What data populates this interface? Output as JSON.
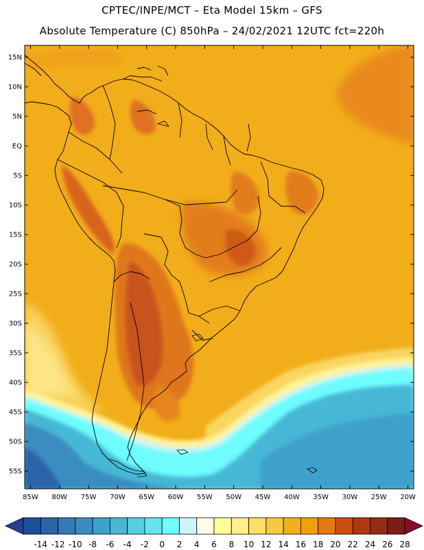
{
  "header": {
    "line1": "CPTEC/INPE/MCT –   Eta Model 15km – GFS",
    "line2": "Absolute Temperature (C) 850hPa – 24/02/2021 12UTC fct=220h"
  },
  "map": {
    "lon_range": [
      -86,
      -19
    ],
    "lat_range": [
      -58,
      17
    ],
    "lat_ticks": [
      {
        "value": 15,
        "label": "15N"
      },
      {
        "value": 10,
        "label": "10N"
      },
      {
        "value": 5,
        "label": "5N"
      },
      {
        "value": 0,
        "label": "EQ"
      },
      {
        "value": -5,
        "label": "5S"
      },
      {
        "value": -10,
        "label": "10S"
      },
      {
        "value": -15,
        "label": "15S"
      },
      {
        "value": -20,
        "label": "20S"
      },
      {
        "value": -25,
        "label": "25S"
      },
      {
        "value": -30,
        "label": "30S"
      },
      {
        "value": -35,
        "label": "35S"
      },
      {
        "value": -40,
        "label": "40S"
      },
      {
        "value": -45,
        "label": "45S"
      },
      {
        "value": -50,
        "label": "50S"
      },
      {
        "value": -55,
        "label": "55S"
      }
    ],
    "lon_ticks": [
      {
        "value": -85,
        "label": "85W"
      },
      {
        "value": -80,
        "label": "80W"
      },
      {
        "value": -75,
        "label": "75W"
      },
      {
        "value": -70,
        "label": "70W"
      },
      {
        "value": -65,
        "label": "65W"
      },
      {
        "value": -60,
        "label": "60W"
      },
      {
        "value": -55,
        "label": "55W"
      },
      {
        "value": -50,
        "label": "50W"
      },
      {
        "value": -45,
        "label": "45W"
      },
      {
        "value": -40,
        "label": "40W"
      },
      {
        "value": -35,
        "label": "35W"
      },
      {
        "value": -30,
        "label": "30W"
      },
      {
        "value": -25,
        "label": "25W"
      },
      {
        "value": -20,
        "label": "20W"
      }
    ]
  },
  "colorbar": {
    "labels": [
      "-14",
      "-12",
      "-10",
      "-8",
      "-6",
      "-4",
      "-2",
      "0",
      "2",
      "4",
      "6",
      "8",
      "10",
      "12",
      "14",
      "16",
      "18",
      "20",
      "22",
      "24",
      "26",
      "28"
    ],
    "colors": [
      "#283f8f",
      "#1e4f9a",
      "#2a64a8",
      "#3578b5",
      "#3a8cc0",
      "#3ea1cb",
      "#47b7d6",
      "#56cde0",
      "#66e4ec",
      "#6efcfc",
      "#cdf5fb",
      "#fffbe8",
      "#ffff96",
      "#fff08c",
      "#fde068",
      "#f6c843",
      "#f2b01e",
      "#f0a10a",
      "#e5780f",
      "#cc4e12",
      "#b0380f",
      "#962a12",
      "#7a1d18",
      "#8a0a2a"
    ]
  }
}
